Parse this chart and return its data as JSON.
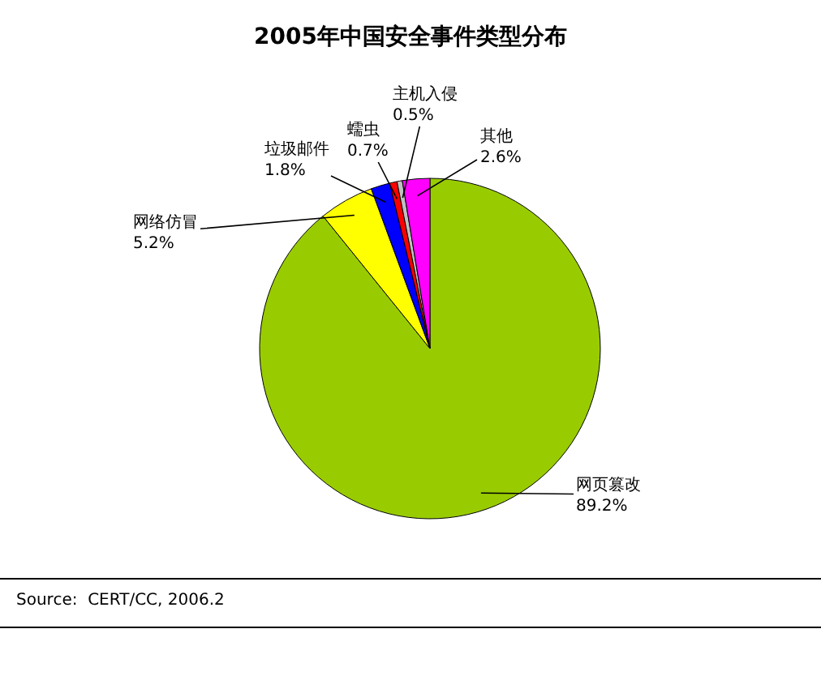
{
  "chart_data": {
    "type": "pie",
    "title": "2005年中国安全事件类型分布",
    "categories": [
      "网页篡改",
      "网络仿冒",
      "垃圾邮件",
      "蠕虫",
      "主机入侵",
      "其他"
    ],
    "values": [
      89.2,
      5.2,
      1.8,
      0.7,
      0.5,
      2.6
    ],
    "value_labels": [
      "89.2%",
      "5.2%",
      "1.8%",
      "0.7%",
      "0.5%",
      "2.6%"
    ],
    "colors": [
      "#99cc00",
      "#ffff00",
      "#0000ff",
      "#ff0000",
      "#c0c0c0",
      "#ff00ff"
    ],
    "annotations": [
      "Source:  CERT/CC, 2006.2"
    ],
    "legend": false
  }
}
